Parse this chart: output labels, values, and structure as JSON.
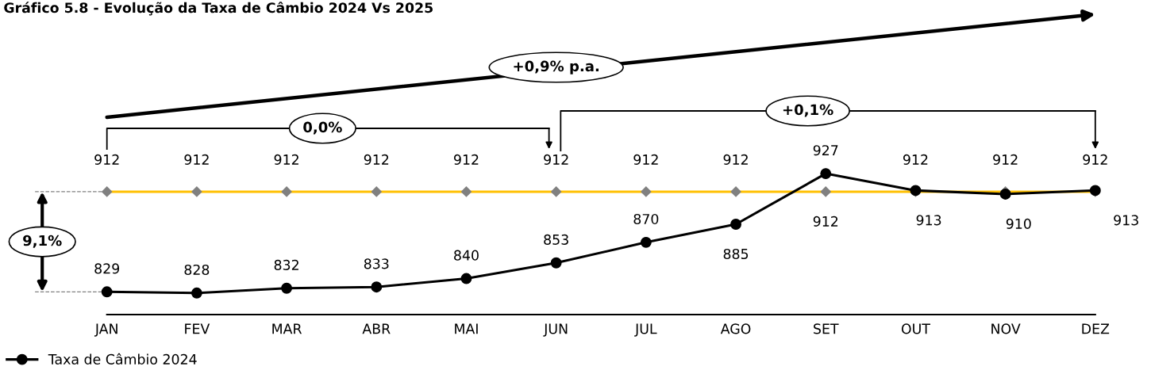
{
  "chart_data": {
    "type": "line",
    "title": "Gráfico 5.8 - Evolução da Taxa de Câmbio 2024 Vs 2025",
    "categories": [
      "JAN",
      "FEV",
      "MAR",
      "ABR",
      "MAI",
      "JUN",
      "JUL",
      "AGO",
      "SET",
      "OUT",
      "NOV",
      "DEZ"
    ],
    "series": [
      {
        "name": "Taxa de Câmbio 2024",
        "color": "#000000",
        "marker": "circle",
        "values": [
          829,
          828,
          832,
          833,
          840,
          853,
          870,
          885,
          927,
          913,
          910,
          913
        ]
      },
      {
        "color": "#ffc000",
        "marker": "diamond",
        "colors": [
          "#808080",
          "#808080",
          "#808080",
          "#808080",
          "#808080",
          "#808080",
          "#808080",
          "#808080",
          "#808080",
          "#808080",
          "#808080",
          "#808080"
        ],
        "values": [
          912,
          912,
          912,
          912,
          912,
          912,
          912,
          912,
          912,
          912,
          912,
          912
        ]
      }
    ],
    "data_labels": true,
    "legend": "bottom left",
    "grid": false,
    "annotations": [
      "+0,9% p.a.",
      "0,0%",
      "+0,1%",
      "9,1%"
    ]
  }
}
